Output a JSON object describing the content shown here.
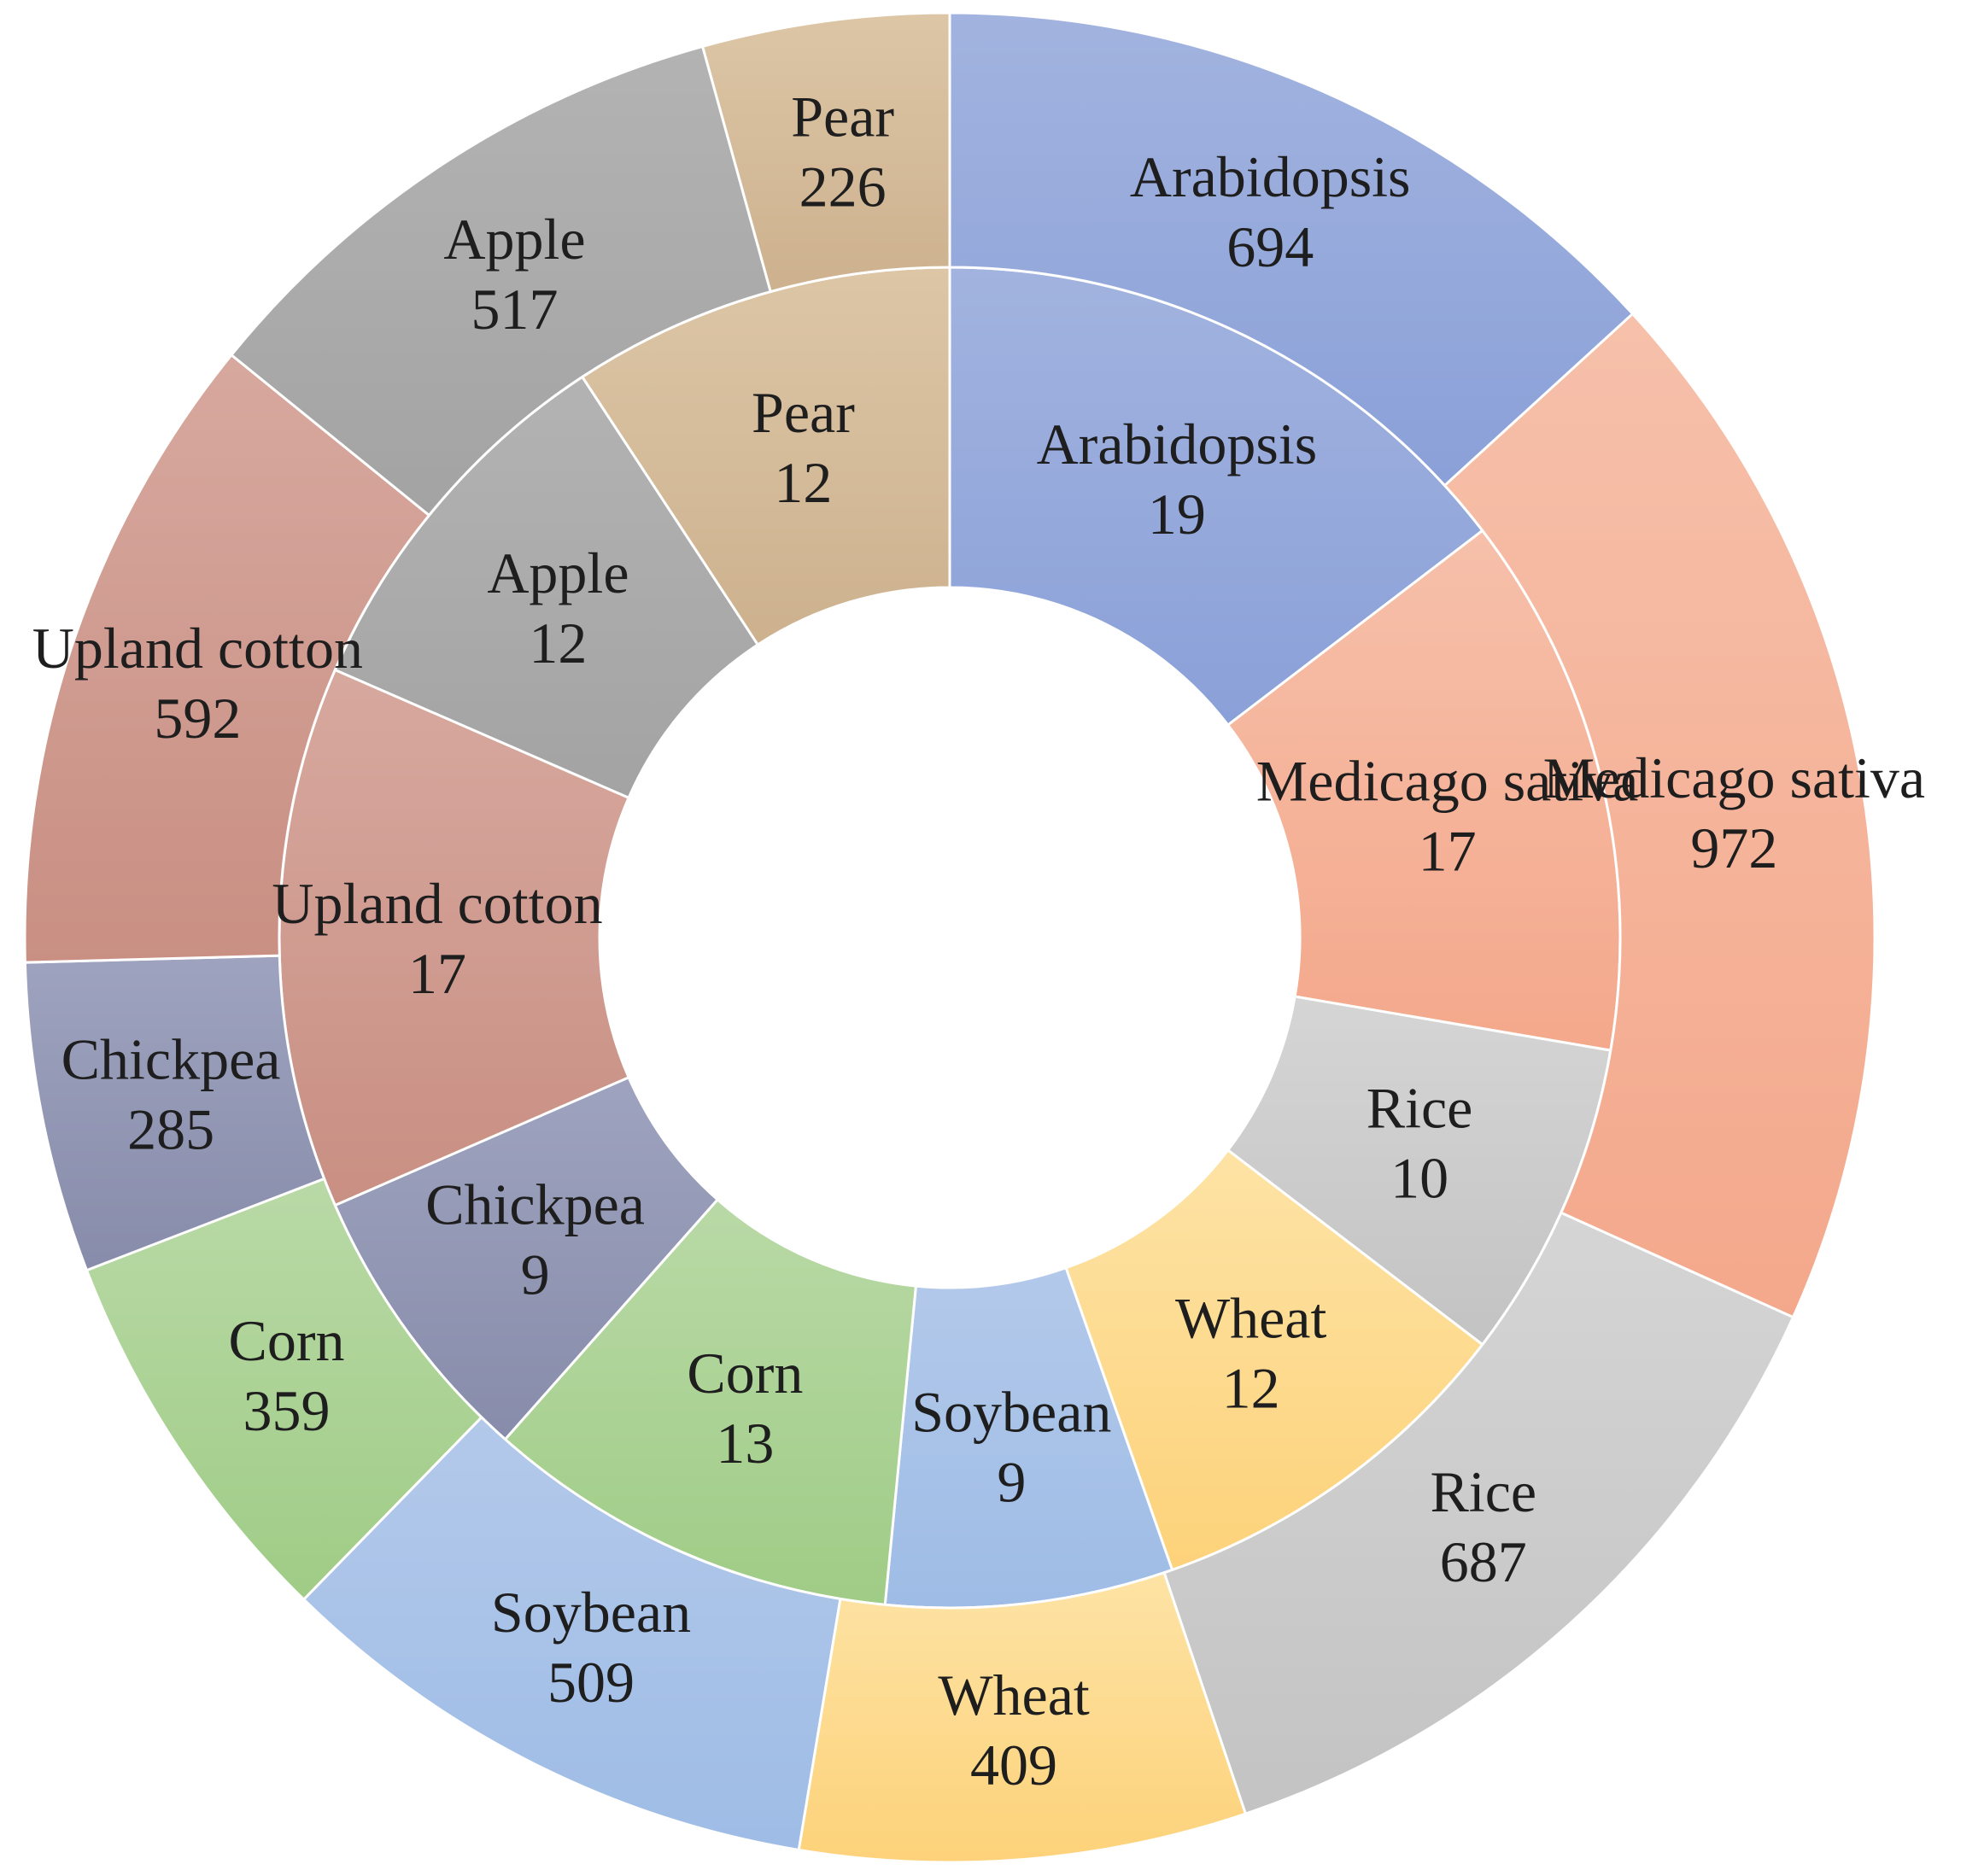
{
  "chart_data": {
    "type": "pie",
    "subtype": "double-donut",
    "rings": [
      {
        "name": "",
        "slices": [
          {
            "label": "Arabidopsis",
            "value": 19,
            "color_top": "#a2b3df",
            "color_bottom": "#8aa0d8"
          },
          {
            "label": "Medicago sativa",
            "value": 17,
            "color_top": "#f6c0aa",
            "color_bottom": "#f4a88b"
          },
          {
            "label": "Rice",
            "value": 10,
            "color_top": "#d5d5d5",
            "color_bottom": "#c3c3c3"
          },
          {
            "label": "Wheat",
            "value": 12,
            "color_top": "#fde3a5",
            "color_bottom": "#fdd27a"
          },
          {
            "label": "Soybean",
            "value": 9,
            "color_top": "#b3c9ea",
            "color_bottom": "#9ebce6"
          },
          {
            "label": "Corn",
            "value": 13,
            "color_top": "#b9d9a6",
            "color_bottom": "#9fcc86"
          },
          {
            "label": "Chickpea",
            "value": 9,
            "color_top": "#9ea3bf",
            "color_bottom": "#878caa"
          },
          {
            "label": "Upland cotton",
            "value": 17,
            "color_top": "#d7a89e",
            "color_bottom": "#c98f83"
          },
          {
            "label": "Apple",
            "value": 12,
            "color_top": "#b3b3b3",
            "color_bottom": "#a3a3a3"
          },
          {
            "label": "Pear",
            "value": 12,
            "color_top": "#dcc6a6",
            "color_bottom": "#cdb18e"
          }
        ]
      },
      {
        "name": "",
        "slices": [
          {
            "label": "Arabidopsis",
            "value": 694,
            "color_top": "#a2b3df",
            "color_bottom": "#8aa0d8"
          },
          {
            "label": "Medicago sativa",
            "value": 972,
            "color_top": "#f6c0aa",
            "color_bottom": "#f4a88b"
          },
          {
            "label": "Rice",
            "value": 687,
            "color_top": "#d5d5d5",
            "color_bottom": "#c3c3c3"
          },
          {
            "label": "Wheat",
            "value": 409,
            "color_top": "#fde3a5",
            "color_bottom": "#fdd27a"
          },
          {
            "label": "Soybean",
            "value": 509,
            "color_top": "#b3c9ea",
            "color_bottom": "#9ebce6"
          },
          {
            "label": "Corn",
            "value": 359,
            "color_top": "#b9d9a6",
            "color_bottom": "#9fcc86"
          },
          {
            "label": "Chickpea",
            "value": 285,
            "color_top": "#9ea3bf",
            "color_bottom": "#878caa"
          },
          {
            "label": "Upland cotton",
            "value": 592,
            "color_top": "#d7a89e",
            "color_bottom": "#c98f83"
          },
          {
            "label": "Apple",
            "value": 517,
            "color_top": "#b3b3b3",
            "color_bottom": "#a3a3a3"
          },
          {
            "label": "Pear",
            "value": 226,
            "color_top": "#dcc6a6",
            "color_bottom": "#cdb18e"
          }
        ]
      }
    ],
    "start_angle": "12 o'clock",
    "direction": "clockwise",
    "title": "",
    "legend": "none"
  }
}
